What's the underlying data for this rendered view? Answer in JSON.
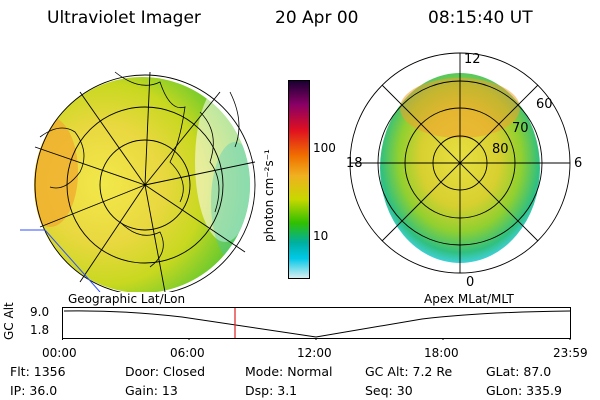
{
  "header": {
    "title": "Ultraviolet Imager",
    "date": "20 Apr 00",
    "time": "08:15:40 UT"
  },
  "maps": {
    "left_label": "Geographic Lat/Lon",
    "right_label": "Apex MLat/MLT"
  },
  "polar_labels": {
    "top": "12",
    "left": "18",
    "right": "6",
    "bottom": "0",
    "rings": [
      "60",
      "70",
      "80"
    ]
  },
  "colorbar": {
    "unit": "photon cm⁻²s⁻¹",
    "ticks": [
      "100",
      "10"
    ],
    "colors": [
      "#1a0033",
      "#8a0066",
      "#e01020",
      "#f07000",
      "#f0b020",
      "#c8d800",
      "#30c000",
      "#00b0a0",
      "#00c8e8",
      "#d8eef0"
    ]
  },
  "timeline": {
    "ylabel": "GC Alt",
    "y_top": "9.0",
    "y_bottom": "1.8",
    "ticks": [
      "00:00",
      "06:00",
      "12:00",
      "18:00",
      "23:59"
    ],
    "marker_time": "08:15:40"
  },
  "info": {
    "flt": "Flt: 1356",
    "door": "Door: Closed",
    "mode": "Mode: Normal",
    "gcalt": "GC Alt: 7.2 Re",
    "glat": "GLat:   87.0",
    "ip": "IP: 36.0",
    "gain": "Gain: 13",
    "dsp": "Dsp:     3.1",
    "seq": "Seq: 30",
    "glon": "GLon: 335.9"
  }
}
